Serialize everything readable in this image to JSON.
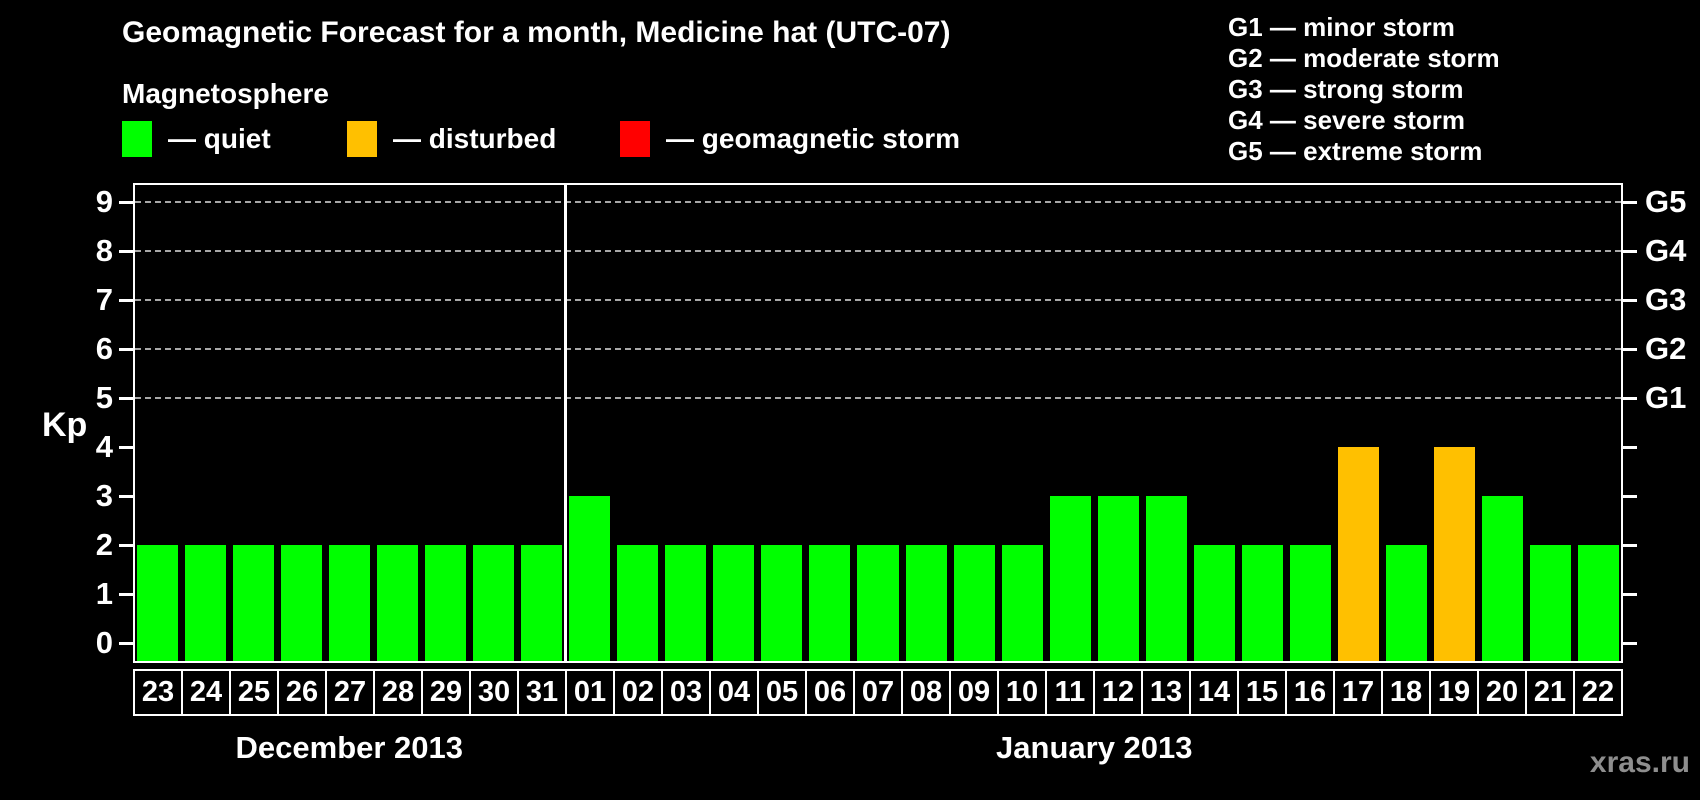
{
  "title": "Geomagnetic Forecast for a month, Medicine hat (UTC-07)",
  "subtitle": "Magnetosphere",
  "legend": {
    "items": [
      {
        "key": "quiet",
        "label": "— quiet",
        "color": "#00ff00"
      },
      {
        "key": "disturbed",
        "label": "— disturbed",
        "color": "#ffc000"
      },
      {
        "key": "storm",
        "label": "— geomagnetic storm",
        "color": "#ff0000"
      }
    ]
  },
  "g_legend": [
    "G1 — minor storm",
    "G2 — moderate storm",
    "G3 — strong storm",
    "G4 — severe storm",
    "G5 — extreme storm"
  ],
  "watermark": "xras.ru",
  "chart_data": {
    "type": "bar",
    "ylabel": "Kp",
    "ylim": [
      0,
      9.4
    ],
    "yticks": [
      0,
      1,
      2,
      3,
      4,
      5,
      6,
      7,
      8,
      9
    ],
    "gridlines_kp": [
      5,
      6,
      7,
      8,
      9
    ],
    "right_axis_labels": [
      {
        "kp": 5,
        "label": "G1"
      },
      {
        "kp": 6,
        "label": "G2"
      },
      {
        "kp": 7,
        "label": "G3"
      },
      {
        "kp": 8,
        "label": "G4"
      },
      {
        "kp": 9,
        "label": "G5"
      }
    ],
    "months": [
      {
        "label": "December 2013",
        "days": 9
      },
      {
        "label": "January 2013",
        "days": 22
      }
    ],
    "categories": [
      "23",
      "24",
      "25",
      "26",
      "27",
      "28",
      "29",
      "30",
      "31",
      "01",
      "02",
      "03",
      "04",
      "05",
      "06",
      "07",
      "08",
      "09",
      "10",
      "11",
      "12",
      "13",
      "14",
      "15",
      "16",
      "17",
      "18",
      "19",
      "20",
      "21",
      "22"
    ],
    "series": [
      {
        "name": "Kp forecast",
        "values": [
          2,
          2,
          2,
          2,
          2,
          2,
          2,
          2,
          2,
          3,
          2,
          2,
          2,
          2,
          2,
          2,
          2,
          2,
          2,
          3,
          3,
          3,
          2,
          2,
          2,
          4,
          2,
          4,
          3,
          2,
          2
        ]
      }
    ],
    "states": [
      "quiet",
      "quiet",
      "quiet",
      "quiet",
      "quiet",
      "quiet",
      "quiet",
      "quiet",
      "quiet",
      "quiet",
      "quiet",
      "quiet",
      "quiet",
      "quiet",
      "quiet",
      "quiet",
      "quiet",
      "quiet",
      "quiet",
      "quiet",
      "quiet",
      "quiet",
      "quiet",
      "quiet",
      "quiet",
      "disturbed",
      "quiet",
      "disturbed",
      "quiet",
      "quiet",
      "quiet"
    ],
    "colors": {
      "quiet": "#00ff00",
      "disturbed": "#ffc000",
      "storm": "#ff0000"
    },
    "grid": true,
    "legend_position": "top"
  }
}
